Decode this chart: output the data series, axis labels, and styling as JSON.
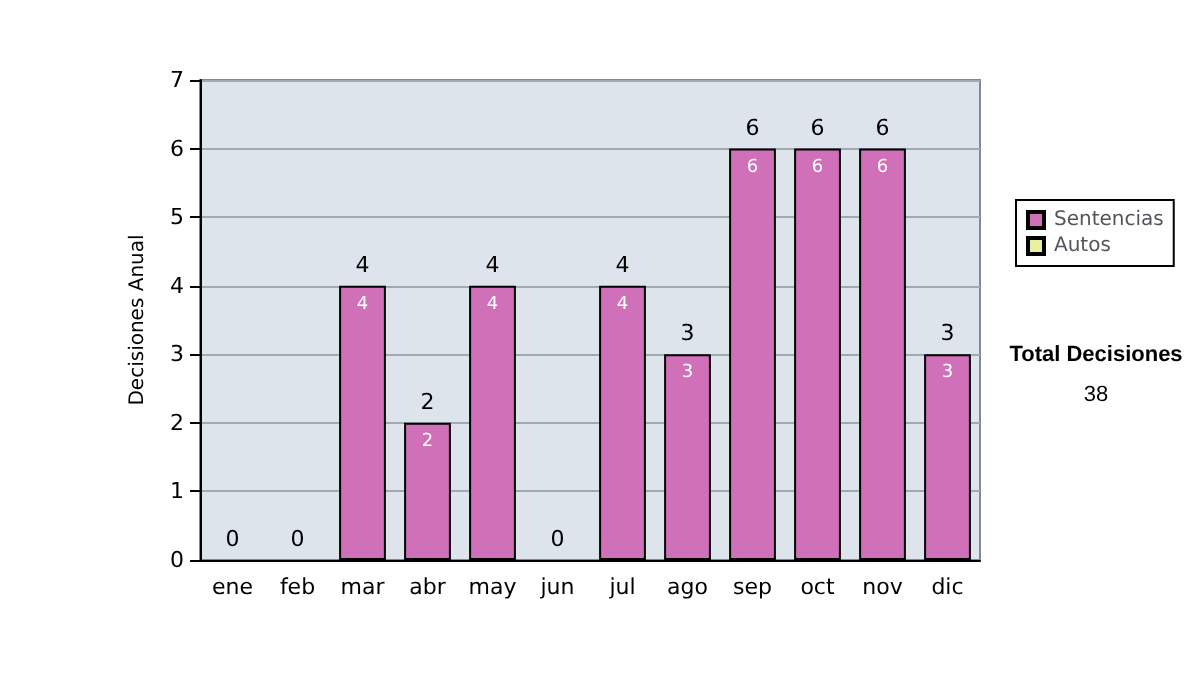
{
  "chart_data": {
    "type": "bar",
    "stacked": true,
    "ylabel": "Decisiones Anual",
    "categories": [
      "ene",
      "feb",
      "mar",
      "abr",
      "may",
      "jun",
      "jul",
      "ago",
      "sep",
      "oct",
      "nov",
      "dic"
    ],
    "series": [
      {
        "name": "Sentencias",
        "color": "#d070b8",
        "values": [
          0,
          0,
          4,
          2,
          4,
          0,
          4,
          3,
          6,
          6,
          6,
          3
        ],
        "value_labels": [
          null,
          null,
          "4",
          "2",
          "4",
          null,
          "4",
          "3",
          "6",
          "6",
          "6",
          "3"
        ]
      },
      {
        "name": "Autos",
        "color": "#e8f0a0",
        "values": [
          0,
          0,
          0,
          0,
          0,
          0,
          0,
          0,
          0,
          0,
          0,
          0
        ]
      }
    ],
    "totals": [
      "0",
      "0",
      "4",
      "2",
      "4",
      "0",
      "4",
      "3",
      "6",
      "6",
      "6",
      "3"
    ],
    "ylim": [
      0,
      7
    ],
    "yticks": [
      0,
      1,
      2,
      3,
      4,
      5,
      6,
      7
    ],
    "grid": "y",
    "legend": "right",
    "annotations": [
      "Total Decisiones",
      "38"
    ]
  }
}
